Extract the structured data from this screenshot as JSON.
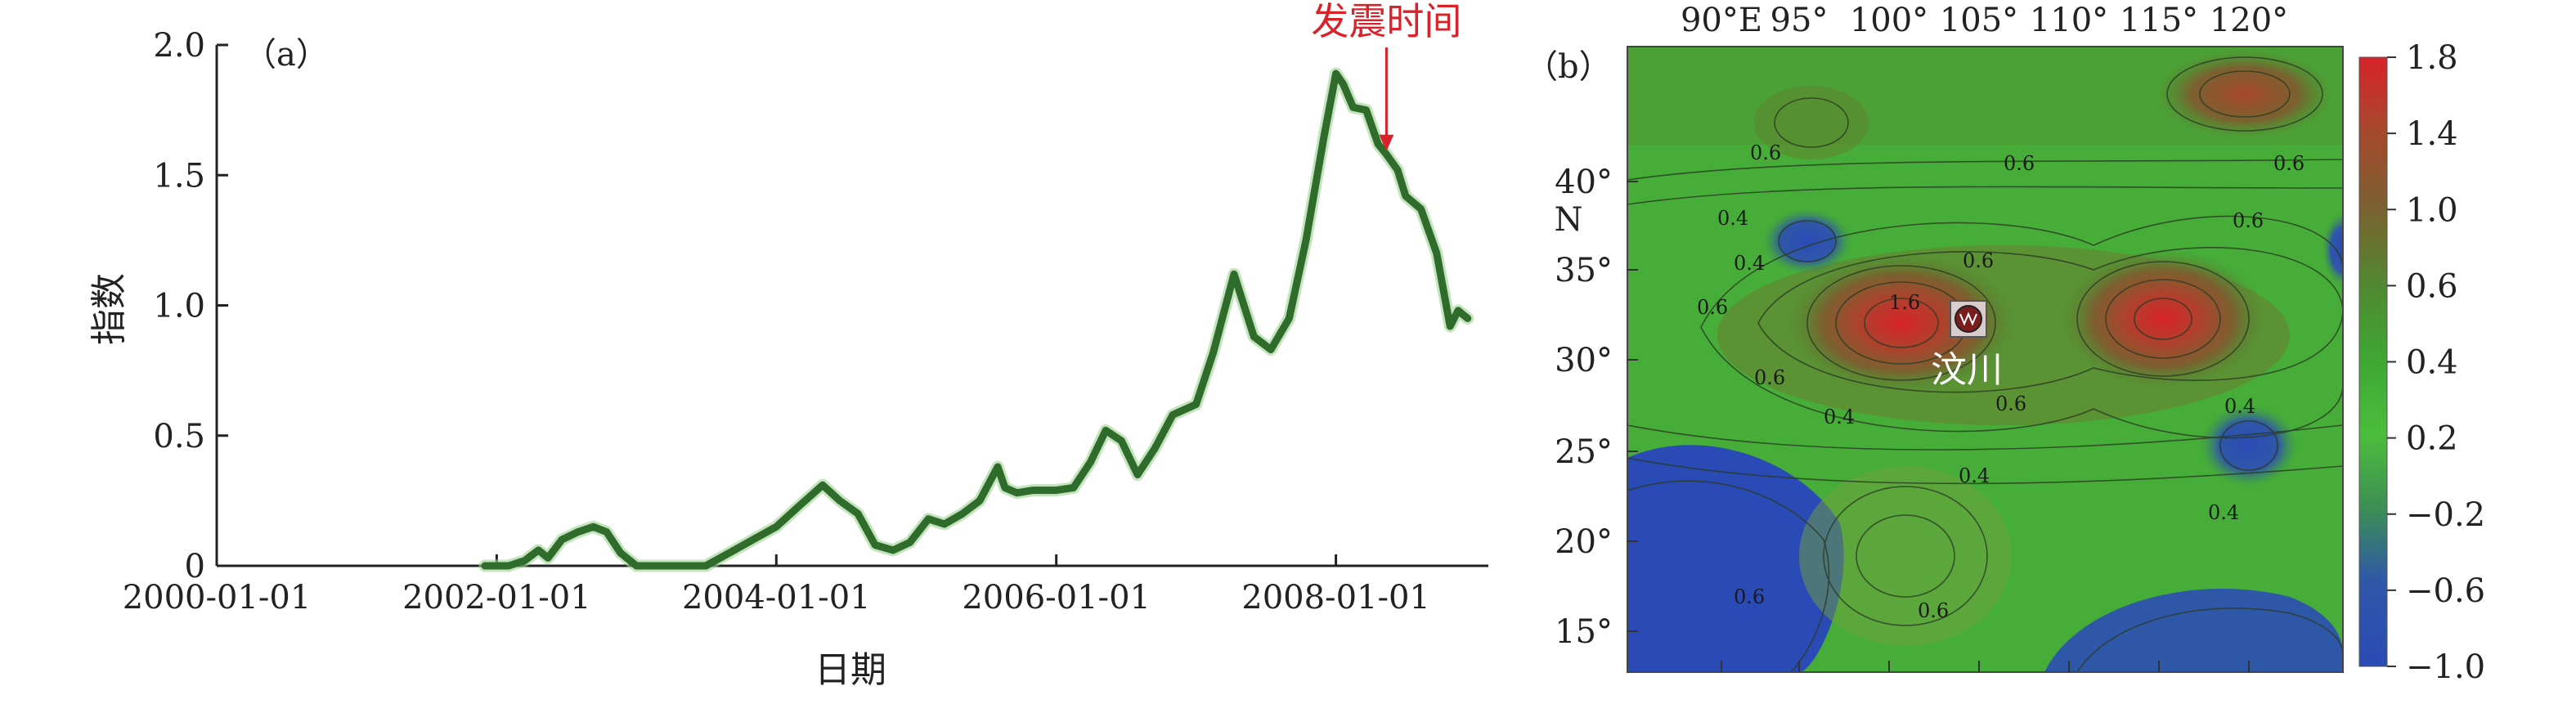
{
  "chart_data": [
    {
      "type": "line",
      "panel_label": "（a）",
      "xlabel": "日期",
      "ylabel": "指数",
      "x_ticks": [
        "2000-01-01",
        "2002-01-01",
        "2004-01-01",
        "2006-01-01",
        "2008-01-01"
      ],
      "x_range": [
        "2000-01-01",
        "2009-01-01"
      ],
      "y_ticks": [
        "0",
        "0.5",
        "1.0",
        "1.5",
        "2.0"
      ],
      "ylim": [
        0,
        2.0
      ],
      "line_color": "#2f6b2a",
      "annotation": {
        "text": "发震时间",
        "date": "2008-05-12",
        "value": 1.58,
        "color": "#d8232a"
      },
      "series": [
        {
          "points": [
            [
              "2001-12-01",
              0.0
            ],
            [
              "2002-02-01",
              0.0
            ],
            [
              "2002-03-15",
              0.02
            ],
            [
              "2002-04-20",
              0.06
            ],
            [
              "2002-05-15",
              0.03
            ],
            [
              "2002-06-20",
              0.1
            ],
            [
              "2002-08-01",
              0.13
            ],
            [
              "2002-09-10",
              0.15
            ],
            [
              "2002-10-15",
              0.13
            ],
            [
              "2002-11-20",
              0.05
            ],
            [
              "2003-01-01",
              0.0
            ],
            [
              "2003-07-01",
              0.0
            ],
            [
              "2003-09-01",
              0.05
            ],
            [
              "2003-11-01",
              0.1
            ],
            [
              "2004-01-01",
              0.15
            ],
            [
              "2004-03-01",
              0.23
            ],
            [
              "2004-05-01",
              0.31
            ],
            [
              "2004-06-15",
              0.25
            ],
            [
              "2004-08-01",
              0.2
            ],
            [
              "2004-09-15",
              0.08
            ],
            [
              "2004-11-01",
              0.06
            ],
            [
              "2004-12-15",
              0.09
            ],
            [
              "2005-02-01",
              0.18
            ],
            [
              "2005-03-15",
              0.16
            ],
            [
              "2005-05-01",
              0.2
            ],
            [
              "2005-06-15",
              0.25
            ],
            [
              "2005-08-01",
              0.38
            ],
            [
              "2005-08-20",
              0.3
            ],
            [
              "2005-09-20",
              0.28
            ],
            [
              "2005-11-01",
              0.29
            ],
            [
              "2006-01-01",
              0.29
            ],
            [
              "2006-02-15",
              0.3
            ],
            [
              "2006-04-01",
              0.4
            ],
            [
              "2006-05-10",
              0.52
            ],
            [
              "2006-06-20",
              0.48
            ],
            [
              "2006-08-01",
              0.35
            ],
            [
              "2006-09-15",
              0.45
            ],
            [
              "2006-11-01",
              0.58
            ],
            [
              "2007-01-01",
              0.62
            ],
            [
              "2007-02-15",
              0.82
            ],
            [
              "2007-04-10",
              1.12
            ],
            [
              "2007-06-01",
              0.88
            ],
            [
              "2007-07-15",
              0.83
            ],
            [
              "2007-09-01",
              0.95
            ],
            [
              "2007-10-15",
              1.25
            ],
            [
              "2007-12-01",
              1.65
            ],
            [
              "2008-01-01",
              1.89
            ],
            [
              "2008-01-20",
              1.85
            ],
            [
              "2008-02-15",
              1.76
            ],
            [
              "2008-03-20",
              1.75
            ],
            [
              "2008-04-20",
              1.62
            ],
            [
              "2008-05-12",
              1.58
            ],
            [
              "2008-06-10",
              1.52
            ],
            [
              "2008-07-01",
              1.42
            ],
            [
              "2008-08-10",
              1.37
            ],
            [
              "2008-09-20",
              1.2
            ],
            [
              "2008-10-25",
              0.92
            ],
            [
              "2008-11-15",
              0.98
            ],
            [
              "2008-12-10",
              0.95
            ]
          ]
        }
      ]
    },
    {
      "type": "heatmap",
      "panel_label": "（b）",
      "x_ticks": [
        "90°E",
        "95°",
        "100°",
        "105°",
        "110°",
        "115°",
        "120°"
      ],
      "y_ticks": [
        "40°",
        "35°",
        "30°",
        "25°",
        "20°",
        "15°"
      ],
      "y_axis_letter": "N",
      "colorbar_ticks": [
        "1.8",
        "1.4",
        "1.0",
        "0.6",
        "0.4",
        "0.2",
        "−0.2",
        "−0.6",
        "−1.0"
      ],
      "colorbar_colors": [
        "#d8232a",
        "#a7482c",
        "#7a6230",
        "#4f8a32",
        "#3ea833",
        "#4cbd3c",
        "#3d8f55",
        "#2f57a8",
        "#2a4bb5"
      ],
      "epicenter_label": "汶川",
      "contour_labels": [
        "0.6",
        "0.6",
        "0.6",
        "0.4",
        "0.6",
        "0.4",
        "0.6",
        "1.6",
        "0.6",
        "0.6",
        "0.4",
        "0.6",
        "0.4",
        "0.4",
        "0.4",
        "0.6"
      ]
    }
  ]
}
